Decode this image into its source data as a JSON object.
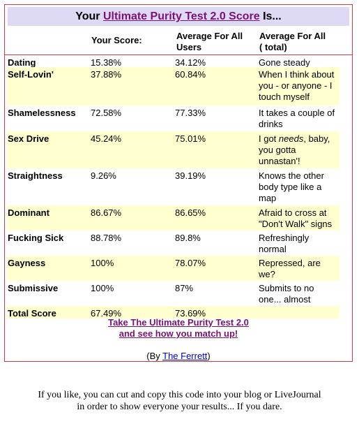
{
  "title": {
    "prefix": "Your ",
    "link": "Ultimate Purity Test 2.0 Score",
    "suffix": " Is..."
  },
  "headers": {
    "score": "Your Score:",
    "avg_line1": "Average For All",
    "avg_line2": "Users",
    "total_line1": "Average For All",
    "total_line2": "( total)"
  },
  "rows": [
    {
      "category": "Dating",
      "score": "15.38%",
      "avg": "34.12%",
      "desc": [
        "Gone steady"
      ]
    },
    {
      "category": "Self-Lovin'",
      "score": "37.88%",
      "avg": "60.84%",
      "desc": [
        "When I think about",
        "you - or anyone - I",
        "touch myself"
      ]
    },
    {
      "category": "Shamelessness",
      "score": "72.58%",
      "avg": "77.33%",
      "desc": [
        "It takes a couple of",
        "drinks"
      ]
    },
    {
      "category": "Sex Drive",
      "score": "45.24%",
      "avg": "75.01%",
      "desc": [
        "I got needs, baby,",
        "you gotta",
        "unnastan'!"
      ]
    },
    {
      "category": "Straightness",
      "score": "9.26%",
      "avg": "39.19%",
      "desc": [
        "Knows the other",
        "body type like a",
        "map"
      ]
    },
    {
      "category": "Dominant",
      "score": "86.67%",
      "avg": "86.65%",
      "desc": [
        "Afraid to cross at",
        "\"Don't Walk\" signs"
      ]
    },
    {
      "category": "Fucking Sick",
      "score": "88.78%",
      "avg": "89.8%",
      "desc": [
        "Refreshingly",
        "normal"
      ]
    },
    {
      "category": "Gayness",
      "score": "100%",
      "avg": "78.07%",
      "desc": [
        "Repressed, are",
        "we?"
      ]
    },
    {
      "category": "Submissive",
      "score": "100%",
      "avg": "87%",
      "desc": [
        "Submits to no",
        "one... almost"
      ]
    },
    {
      "category": "Total Score",
      "score": "67.49%",
      "avg": "73.69%",
      "desc": [
        ""
      ]
    }
  ],
  "take_link": {
    "line1": "Take The Ultimate Purity Test 2.0",
    "line2": "and see how you match up!"
  },
  "byline": {
    "prefix": "(By ",
    "link": "The Ferrett",
    "suffix": ")"
  },
  "footer": {
    "line1": "If you like, you can cut and copy this code into your blog or LiveJournal",
    "line2": "in order to show everyone your results... If you dare."
  },
  "colors": {
    "title_bg": "#dedaf6",
    "row_alt_bg": "#ffffd0",
    "border": "#c0404f",
    "link_purple": "#7a1273",
    "link_blue": "#0000cc"
  }
}
